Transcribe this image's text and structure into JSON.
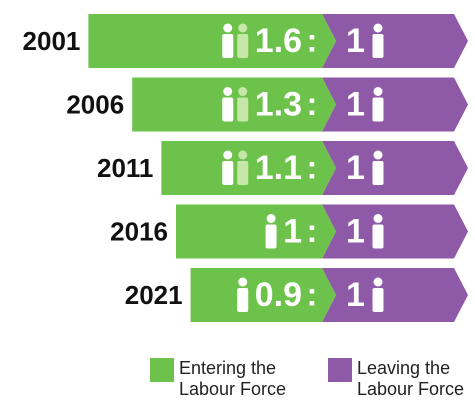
{
  "chart_data": {
    "type": "ratio-bar",
    "categories": [
      "2001",
      "2006",
      "2011",
      "2016",
      "2021"
    ],
    "separator": ":",
    "series": [
      {
        "name": "Entering the Labour Force",
        "color": "#6cc24a",
        "values": [
          1.6,
          1.3,
          1.1,
          1,
          0.9
        ]
      },
      {
        "name": "Leaving the Labour Force",
        "color": "#8e5aa8",
        "values": [
          1,
          1,
          1,
          1,
          1
        ]
      }
    ]
  }
}
